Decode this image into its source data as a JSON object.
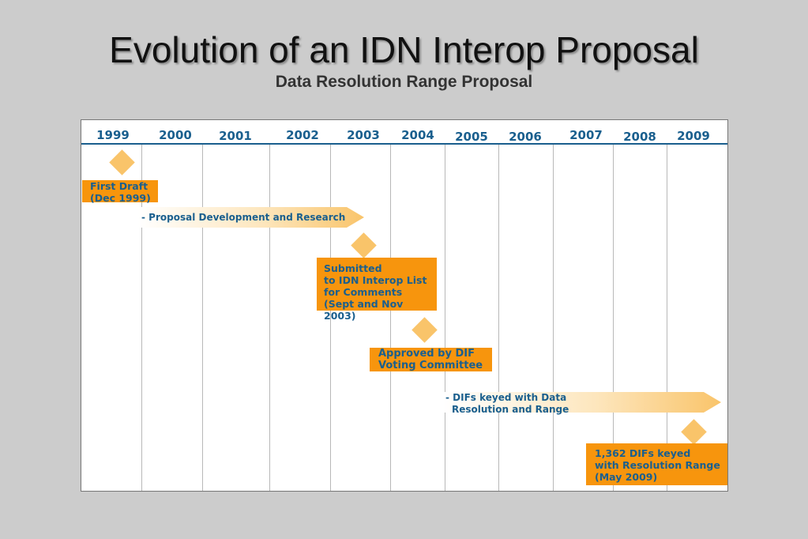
{
  "title": "Evolution of an IDN Interop Proposal",
  "subtitle": "Data Resolution Range Proposal",
  "years": [
    "1999",
    "2000",
    "2001",
    "2002",
    "2003",
    "2004",
    "2005",
    "2006",
    "2007",
    "2008",
    "2009"
  ],
  "milestones": {
    "first_draft": [
      "First Draft",
      "(Dec 1999)"
    ],
    "submitted": [
      "Submitted",
      "to IDN Interop List",
      "for Comments",
      "(Sept and Nov 2003)"
    ],
    "approved": [
      "Approved by DIF",
      "Voting Committee"
    ],
    "difs_keyed": [
      "1,362 DIFs keyed",
      "with Resolution Range",
      "(May 2009)"
    ]
  },
  "phases": {
    "proposal_development": "- Proposal Development and Research",
    "difs_keyed_phase": [
      "- DIFs keyed with Data",
      "Resolution and Range"
    ]
  },
  "colors": {
    "accent_orange": "#f7950d",
    "diamond": "#f9c46a",
    "text_blue": "#1a5f8e",
    "background": "#cccccc"
  }
}
